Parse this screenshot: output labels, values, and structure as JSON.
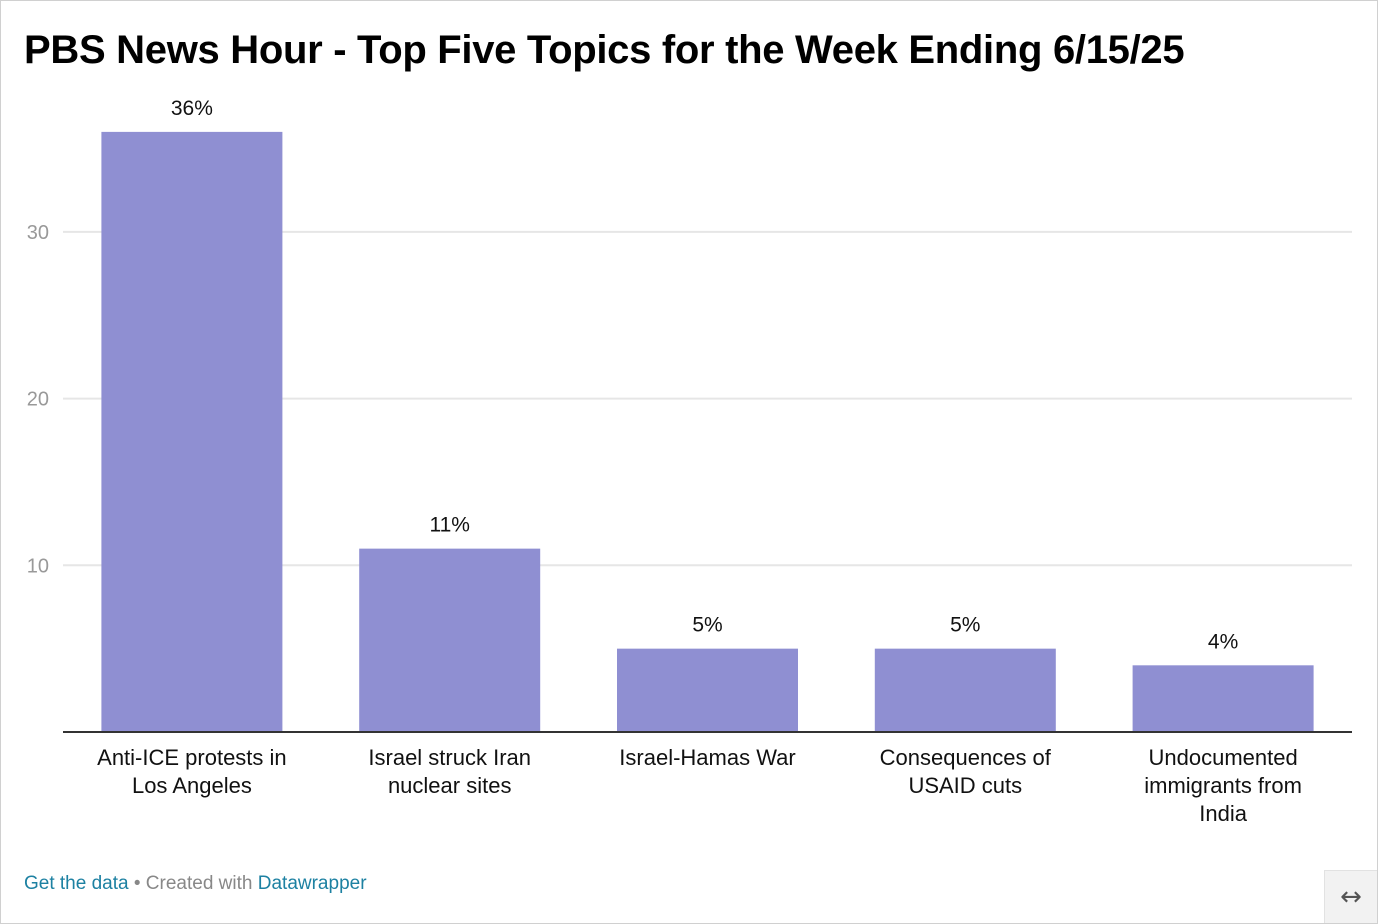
{
  "title": "PBS News Hour - Top Five Topics for the Week Ending 6/15/25",
  "footer": {
    "get_data": "Get the data",
    "separator": " • ",
    "created_with": "Created with ",
    "datawrapper": "Datawrapper"
  },
  "resize_icon": "↔",
  "chart_data": {
    "type": "bar",
    "title": "PBS News Hour - Top Five Topics for the Week Ending 6/15/25",
    "xlabel": "",
    "ylabel": "",
    "categories": [
      [
        "Anti-ICE protests in",
        "Los Angeles"
      ],
      [
        "Israel struck Iran",
        "nuclear sites"
      ],
      [
        "Israel-Hamas War"
      ],
      [
        "Consequences of",
        "USAID cuts"
      ],
      [
        "Undocumented",
        "immigrants from",
        "India"
      ]
    ],
    "values": [
      36,
      11,
      5,
      5,
      4
    ],
    "data_labels": [
      "36%",
      "11%",
      "5%",
      "5%",
      "4%"
    ],
    "y_ticks": [
      10,
      20,
      30
    ],
    "ylim": [
      0,
      40
    ],
    "grid": true,
    "bar_color": "#8f8fd2",
    "grid_color": "#e6e6e6",
    "axis_color": "#333333",
    "tick_label_color": "#999999"
  }
}
